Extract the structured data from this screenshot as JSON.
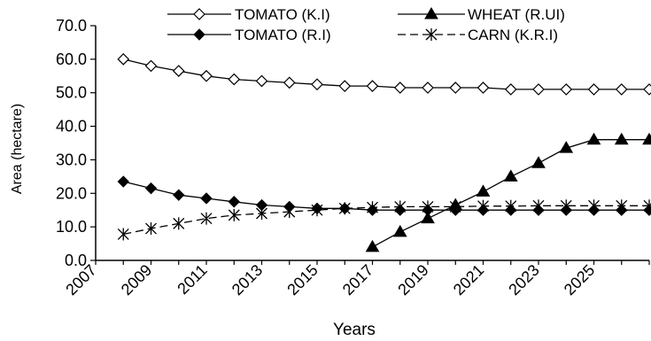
{
  "chart_data": {
    "type": "line",
    "title": "",
    "xlabel": "Years",
    "ylabel": "Area (hectare)",
    "ylim": [
      0,
      70
    ],
    "yticks": [
      "0.0",
      "10.0",
      "20.0",
      "30.0",
      "40.0",
      "50.0",
      "60.0",
      "70.0"
    ],
    "xticks": [
      "2007",
      "2009",
      "2011",
      "2013",
      "2015",
      "2017",
      "2019",
      "2021",
      "2023",
      "2025"
    ],
    "grid": false,
    "legend_position": "top",
    "series": [
      {
        "name": "TOMATO (K.I)",
        "marker": "open-diamond",
        "line": "solid",
        "points": [
          [
            2008,
            60.0
          ],
          [
            2009,
            58.0
          ],
          [
            2010,
            56.5
          ],
          [
            2011,
            55.0
          ],
          [
            2012,
            54.0
          ],
          [
            2013,
            53.5
          ],
          [
            2014,
            53.0
          ],
          [
            2015,
            52.5
          ],
          [
            2016,
            52.0
          ],
          [
            2017,
            52.0
          ],
          [
            2018,
            51.5
          ],
          [
            2019,
            51.5
          ],
          [
            2020,
            51.5
          ],
          [
            2021,
            51.5
          ],
          [
            2022,
            51.0
          ],
          [
            2023,
            51.0
          ],
          [
            2024,
            51.0
          ],
          [
            2025,
            51.0
          ],
          [
            2026,
            51.0
          ],
          [
            2027,
            51.0
          ]
        ]
      },
      {
        "name": "WHEAT (R.UI)",
        "marker": "filled-triangle",
        "line": "solid",
        "points": [
          [
            2017,
            4.0
          ],
          [
            2018,
            8.5
          ],
          [
            2019,
            12.5
          ],
          [
            2020,
            16.5
          ],
          [
            2021,
            20.5
          ],
          [
            2022,
            25.0
          ],
          [
            2023,
            29.0
          ],
          [
            2024,
            33.5
          ],
          [
            2025,
            36.0
          ],
          [
            2026,
            36.0
          ],
          [
            2027,
            36.0
          ]
        ]
      },
      {
        "name": "TOMATO (R.I)",
        "marker": "filled-diamond",
        "line": "solid",
        "points": [
          [
            2008,
            23.5
          ],
          [
            2009,
            21.5
          ],
          [
            2010,
            19.5
          ],
          [
            2011,
            18.5
          ],
          [
            2012,
            17.5
          ],
          [
            2013,
            16.5
          ],
          [
            2014,
            16.0
          ],
          [
            2015,
            15.5
          ],
          [
            2016,
            15.5
          ],
          [
            2017,
            15.0
          ],
          [
            2018,
            15.0
          ],
          [
            2019,
            15.0
          ],
          [
            2020,
            15.0
          ],
          [
            2021,
            15.0
          ],
          [
            2022,
            15.0
          ],
          [
            2023,
            15.0
          ],
          [
            2024,
            15.0
          ],
          [
            2025,
            15.0
          ],
          [
            2026,
            15.0
          ],
          [
            2027,
            15.0
          ]
        ]
      },
      {
        "name": "CARN (K.R.I)",
        "marker": "asterisk",
        "line": "dashed",
        "points": [
          [
            2008,
            7.8
          ],
          [
            2009,
            9.5
          ],
          [
            2010,
            11.0
          ],
          [
            2011,
            12.5
          ],
          [
            2012,
            13.5
          ],
          [
            2013,
            14.0
          ],
          [
            2014,
            14.5
          ],
          [
            2015,
            15.0
          ],
          [
            2016,
            15.5
          ],
          [
            2017,
            15.8
          ],
          [
            2018,
            16.0
          ],
          [
            2019,
            16.0
          ],
          [
            2020,
            16.0
          ],
          [
            2021,
            16.2
          ],
          [
            2022,
            16.2
          ],
          [
            2023,
            16.3
          ],
          [
            2024,
            16.3
          ],
          [
            2025,
            16.3
          ],
          [
            2026,
            16.3
          ],
          [
            2027,
            16.3
          ]
        ]
      }
    ]
  }
}
